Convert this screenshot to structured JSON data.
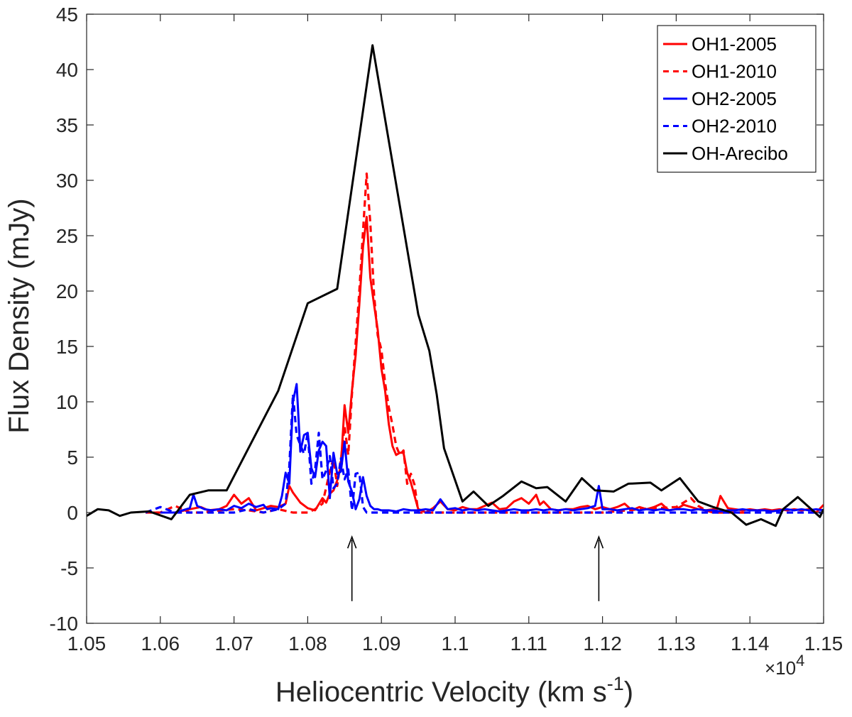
{
  "chart_data": {
    "type": "line",
    "xlabel": "Heliocentric Velocity (km s",
    "xlabel_sup": "-1",
    "xlabel_close": ")",
    "ylabel": "Flux Density (mJy)",
    "x_exponent_label": "×10",
    "x_exponent": "4",
    "xlim": [
      10500,
      11500
    ],
    "ylim": [
      -10,
      45
    ],
    "x_ticks": [
      10500,
      10600,
      10700,
      10800,
      10900,
      11000,
      11100,
      11200,
      11300,
      11400,
      11500
    ],
    "x_tick_labels": [
      "1.05",
      "1.06",
      "1.07",
      "1.08",
      "1.09",
      "1.1",
      "1.11",
      "1.12",
      "1.13",
      "1.14",
      "1.15"
    ],
    "y_ticks": [
      -10,
      -5,
      0,
      5,
      10,
      15,
      20,
      25,
      30,
      35,
      40,
      45
    ],
    "y_tick_labels": [
      "-10",
      "-5",
      "0",
      "5",
      "10",
      "15",
      "20",
      "25",
      "30",
      "35",
      "40",
      "45"
    ],
    "grid": false,
    "legend_position": "top-right",
    "series": [
      {
        "name": "OH1-2005",
        "color": "#ff0000",
        "dash": "solid",
        "x": [
          10580,
          10620,
          10640,
          10655,
          10665,
          10680,
          10690,
          10700,
          10710,
          10720,
          10730,
          10740,
          10750,
          10760,
          10770,
          10775,
          10780,
          10790,
          10800,
          10810,
          10820,
          10825,
          10830,
          10835,
          10840,
          10845,
          10850,
          10855,
          10860,
          10865,
          10870,
          10875,
          10880,
          10885,
          10890,
          10895,
          10900,
          10905,
          10910,
          10915,
          10920,
          10925,
          10930,
          10935,
          10940,
          10945,
          10950,
          10955,
          10960,
          10970,
          10980,
          10990,
          11000,
          11010,
          11020,
          11030,
          11040,
          11050,
          11060,
          11070,
          11080,
          11090,
          11100,
          11110,
          11115,
          11120,
          11130,
          11140,
          11150,
          11160,
          11170,
          11180,
          11190,
          11200,
          11210,
          11220,
          11230,
          11240,
          11250,
          11260,
          11270,
          11280,
          11290,
          11300,
          11310,
          11320,
          11330,
          11340,
          11350,
          11355,
          11360,
          11370,
          11380,
          11390,
          11400,
          11410,
          11420,
          11430,
          11440,
          11450,
          11460,
          11470,
          11480,
          11490,
          11500
        ],
        "y": [
          0,
          0,
          0.3,
          0.5,
          0.2,
          0.3,
          0.6,
          1.6,
          0.8,
          1.3,
          0.2,
          0.4,
          0.6,
          0.5,
          0.8,
          2.4,
          1.8,
          0.9,
          0.4,
          0.2,
          1.3,
          0.9,
          1.7,
          2.0,
          2.9,
          4.2,
          9.7,
          7.2,
          11.0,
          14.2,
          18.8,
          24.0,
          26.7,
          21.2,
          18.8,
          16.5,
          13.0,
          11.0,
          8.0,
          6.0,
          5.2,
          5.4,
          5.4,
          3.6,
          2.7,
          1.5,
          0.3,
          0.2,
          0,
          0.4,
          1.0,
          0.3,
          0.2,
          0.5,
          0.3,
          0.3,
          0.6,
          0.9,
          0.3,
          0.4,
          1.0,
          1.3,
          0.8,
          1.6,
          0.7,
          1.0,
          0.3,
          0.2,
          0.3,
          0.3,
          0.5,
          0.6,
          0.3,
          0.5,
          0.3,
          0.5,
          0.8,
          0.2,
          0.5,
          0.3,
          0.5,
          0.8,
          0.2,
          0.3,
          0.7,
          0.5,
          0.3,
          0.2,
          0.3,
          0.3,
          1.5,
          0.4,
          0.3,
          0.2,
          0.3,
          0.2,
          0.3,
          0.2,
          0.3,
          0.2,
          0.3,
          0.2,
          0.3,
          0,
          0.7
        ]
      },
      {
        "name": "OH1-2010",
        "color": "#ff0000",
        "dash": "dashed",
        "x": [
          10580,
          10600,
          10620,
          10640,
          10660,
          10680,
          10700,
          10720,
          10740,
          10760,
          10780,
          10800,
          10810,
          10820,
          10830,
          10835,
          10840,
          10845,
          10850,
          10855,
          10860,
          10865,
          10870,
          10875,
          10880,
          10885,
          10890,
          10895,
          10900,
          10905,
          10910,
          10915,
          10920,
          10925,
          10930,
          10935,
          10940,
          10945,
          10950,
          11100,
          11150,
          11200,
          11250,
          11300,
          11320,
          11330,
          11340,
          11350,
          11400
        ],
        "y": [
          0,
          0,
          0.6,
          0,
          0,
          0.2,
          0.3,
          0.2,
          0,
          0.3,
          0,
          0,
          0.3,
          0.8,
          3.7,
          4.9,
          2.4,
          4.7,
          7.8,
          5.2,
          10.7,
          15.3,
          20.0,
          25.4,
          30.6,
          26.1,
          19.7,
          16.0,
          14.7,
          11.7,
          9.5,
          7.9,
          6.0,
          5.2,
          5.6,
          2.6,
          3.5,
          2.5,
          0,
          0,
          0,
          0,
          0.3,
          0.5,
          1.3,
          0.6,
          0.2,
          0,
          0
        ]
      },
      {
        "name": "OH2-2005",
        "color": "#0000ff",
        "dash": "solid",
        "x": [
          10600,
          10620,
          10640,
          10645,
          10650,
          10660,
          10670,
          10680,
          10690,
          10700,
          10710,
          10720,
          10730,
          10740,
          10745,
          10750,
          10760,
          10765,
          10770,
          10775,
          10780,
          10785,
          10790,
          10795,
          10800,
          10805,
          10810,
          10815,
          10820,
          10825,
          10830,
          10835,
          10840,
          10845,
          10850,
          10855,
          10860,
          10865,
          10870,
          10875,
          10880,
          10885,
          10890,
          10895,
          10900,
          10910,
          10920,
          10930,
          10940,
          10950,
          10960,
          10970,
          10980,
          10990,
          11000,
          11010,
          11020,
          11030,
          11040,
          11050,
          11060,
          11070,
          11080,
          11090,
          11100,
          11110,
          11120,
          11130,
          11140,
          11150,
          11160,
          11170,
          11180,
          11190,
          11195,
          11200,
          11210,
          11220,
          11230,
          11240,
          11250,
          11260,
          11270,
          11280,
          11290,
          11300,
          11310,
          11320,
          11330,
          11340,
          11350,
          11360,
          11370,
          11380,
          11390,
          11400,
          11410,
          11420,
          11430,
          11440,
          11450,
          11460,
          11470,
          11480,
          11490,
          11500
        ],
        "y": [
          0,
          0,
          0.4,
          1.6,
          0.6,
          0.3,
          0.2,
          0.3,
          0.2,
          0.6,
          0.4,
          0.8,
          0.5,
          0.7,
          0.3,
          0.4,
          0.3,
          1.5,
          3.6,
          2.6,
          10.0,
          11.6,
          5.5,
          7.0,
          7.2,
          4.0,
          3.2,
          5.6,
          6.4,
          6.0,
          1.3,
          5.4,
          3.5,
          3.7,
          6.4,
          2.8,
          1.9,
          0.3,
          1.2,
          3.2,
          1.5,
          0.6,
          0.3,
          0.3,
          0.2,
          0.2,
          0.1,
          0.3,
          0.2,
          0.2,
          0.3,
          0.2,
          1.2,
          0.3,
          0.4,
          0.2,
          0.3,
          0.2,
          0.3,
          0.2,
          0.1,
          0.2,
          0.3,
          0.2,
          0.2,
          0.3,
          0.2,
          0.3,
          0.2,
          0.3,
          0.2,
          0.3,
          0.4,
          0.6,
          2.4,
          0.3,
          0.3,
          0.2,
          0.3,
          0.4,
          0.2,
          0.3,
          0.2,
          0.3,
          0.2,
          0.3,
          0.3,
          0.2,
          0.3,
          0.2,
          0.2,
          0.1,
          0.2,
          0.2,
          0.3,
          0.2,
          0.2,
          0.2,
          0.1,
          0.2,
          0.3,
          0.2,
          0.3,
          0.2,
          0.3,
          0.2
        ]
      },
      {
        "name": "OH2-2010",
        "color": "#0000ff",
        "dash": "dashed",
        "x": [
          10580,
          10600,
          10620,
          10640,
          10660,
          10680,
          10700,
          10720,
          10740,
          10760,
          10770,
          10775,
          10780,
          10785,
          10790,
          10795,
          10800,
          10805,
          10810,
          10815,
          10820,
          10825,
          10830,
          10835,
          10840,
          10845,
          10850,
          10855,
          10860,
          10865,
          10870,
          10875,
          10880,
          10890,
          10900,
          10950,
          11000,
          11050,
          11100,
          11150,
          11200,
          11250,
          11300,
          11350,
          11400,
          11450,
          11500
        ],
        "y": [
          0,
          0.5,
          0,
          0,
          0,
          0,
          0,
          0.3,
          0,
          0.3,
          0.8,
          4.2,
          10.7,
          7.0,
          6.1,
          5.3,
          7.2,
          2.6,
          3.9,
          7.2,
          3.0,
          3.8,
          5.1,
          2.2,
          2.6,
          4.9,
          3.0,
          3.9,
          0.2,
          3.5,
          3.6,
          0.5,
          0,
          0,
          0,
          0,
          0,
          0,
          0,
          0,
          0,
          0,
          0,
          0,
          0,
          0,
          0
        ]
      },
      {
        "name": "OH-Arecibo",
        "color": "#000000",
        "dash": "solid",
        "x": [
          10500,
          10515,
          10530,
          10545,
          10560,
          10585,
          10615,
          10640,
          10665,
          10690,
          10760,
          10800,
          10840,
          10860,
          10888,
          10950,
          10965,
          10975,
          10985,
          11010,
          11025,
          11045,
          11065,
          11090,
          11110,
          11125,
          11150,
          11172,
          11190,
          11215,
          11235,
          11265,
          11280,
          11305,
          11330,
          11350,
          11375,
          11395,
          11415,
          11435,
          11445,
          11465,
          11495,
          11500
        ],
        "y": [
          -0.3,
          0.3,
          0.2,
          -0.3,
          0,
          0.1,
          -0.6,
          1.6,
          2.0,
          2.0,
          11.0,
          18.9,
          20.2,
          29.4,
          42.2,
          17.9,
          14.6,
          10.7,
          5.8,
          1.0,
          1.9,
          0.6,
          1.5,
          2.8,
          2.2,
          2.3,
          1.0,
          3.1,
          2.0,
          1.9,
          2.6,
          2.7,
          2.0,
          3.1,
          1.0,
          0.5,
          0,
          -1.1,
          -0.6,
          -1.2,
          0.3,
          1.4,
          -0.4,
          0.3
        ]
      }
    ],
    "annotations": [
      {
        "type": "arrow",
        "x": 10860,
        "y_from": -8,
        "y_to": -2.2
      },
      {
        "type": "arrow",
        "x": 11195,
        "y_from": -8,
        "y_to": -2.2
      }
    ]
  }
}
